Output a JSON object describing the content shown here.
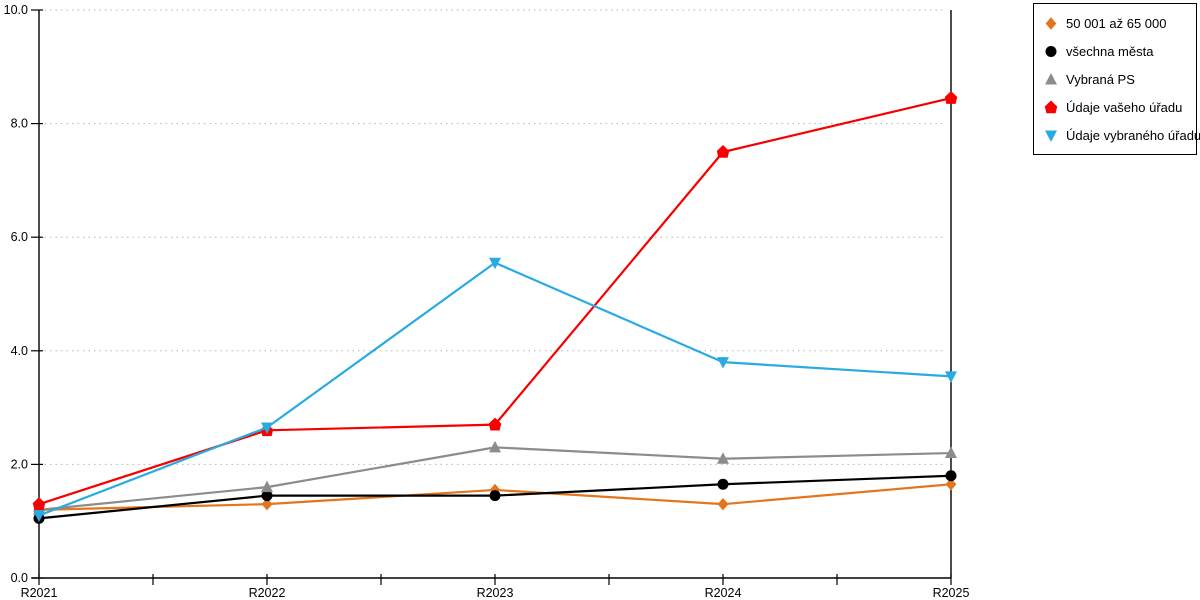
{
  "chart_data": {
    "type": "line",
    "title": "",
    "xlabel": "",
    "ylabel": "",
    "x": [
      "R2021",
      "R2022",
      "R2023",
      "R2024",
      "R2025"
    ],
    "ylim": [
      0,
      10
    ],
    "yticks": [
      0,
      2,
      4,
      6,
      8,
      10
    ],
    "ytick_labels": [
      "0.0",
      "2.0",
      "4.0",
      "6.0",
      "8.0",
      "10.0"
    ],
    "grid": "horizontal-dotted",
    "legend_position": "top-right-outside",
    "axis_color": "#000000",
    "gridline_color": "#b3b3b3",
    "series": [
      {
        "name": "50 001 až 65 000",
        "marker": "diamond",
        "color": "#E2751D",
        "values": [
          1.2,
          1.3,
          1.55,
          1.3,
          1.65
        ]
      },
      {
        "name": "všechna města",
        "marker": "circle",
        "color": "#000000",
        "values": [
          1.05,
          1.45,
          1.45,
          1.65,
          1.8
        ]
      },
      {
        "name": "Vybraná PS",
        "marker": "triangle-up",
        "color": "#8C8C8C",
        "values": [
          1.2,
          1.6,
          2.3,
          2.1,
          2.2
        ]
      },
      {
        "name": "Údaje vašeho úřadu",
        "marker": "pentagon",
        "color": "#F60000",
        "values": [
          1.3,
          2.6,
          2.7,
          7.5,
          8.45
        ]
      },
      {
        "name": "Údaje vybraného úřadu",
        "marker": "triangle-down",
        "color": "#29ABE2",
        "values": [
          1.1,
          2.65,
          5.55,
          3.8,
          3.55
        ]
      }
    ]
  }
}
